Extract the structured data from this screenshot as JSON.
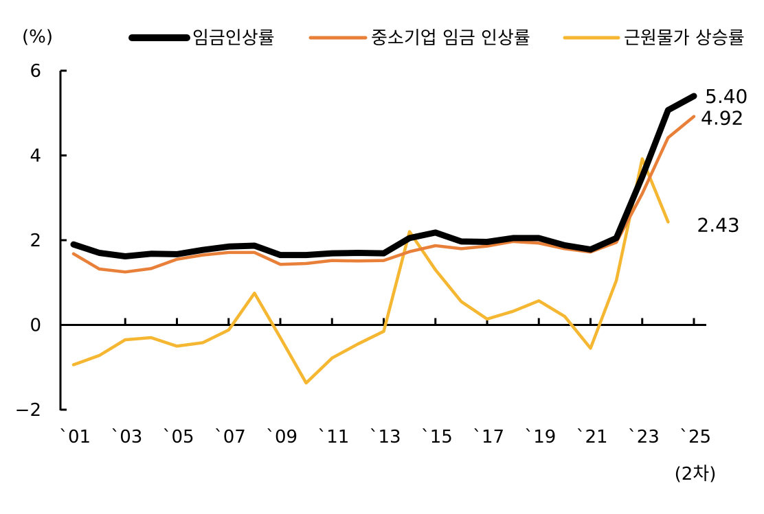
{
  "chart_data": {
    "type": "line",
    "unit_label": "(%)",
    "x": [
      "2001",
      "2002",
      "2003",
      "2004",
      "2005",
      "2006",
      "2007",
      "2008",
      "2009",
      "2010",
      "2011",
      "2012",
      "2013",
      "2014",
      "2015",
      "2016",
      "2017",
      "2018",
      "2019",
      "2020",
      "2021",
      "2022",
      "2023",
      "2024",
      "2025"
    ],
    "x_tick_labels": [
      {
        "x": "2001",
        "label": "`01"
      },
      {
        "x": "2003",
        "label": "`03"
      },
      {
        "x": "2005",
        "label": "`05"
      },
      {
        "x": "2007",
        "label": "`07"
      },
      {
        "x": "2009",
        "label": "`09"
      },
      {
        "x": "2011",
        "label": "`11"
      },
      {
        "x": "2013",
        "label": "`13"
      },
      {
        "x": "2015",
        "label": "`15"
      },
      {
        "x": "2017",
        "label": "`17"
      },
      {
        "x": "2019",
        "label": "`19"
      },
      {
        "x": "2021",
        "label": "`21"
      },
      {
        "x": "2023",
        "label": "`23"
      },
      {
        "x": "2025",
        "label": "`25",
        "sublabel": "(2차)"
      }
    ],
    "y_ticks": [
      "6",
      "4",
      "2",
      "0",
      "−2"
    ],
    "ylim": [
      -2,
      6
    ],
    "series": [
      {
        "name": "임금인상률",
        "color": "#000000",
        "style": "thick",
        "values": [
          1.9,
          1.7,
          1.62,
          1.68,
          1.67,
          1.77,
          1.85,
          1.87,
          1.65,
          1.65,
          1.69,
          1.7,
          1.69,
          2.05,
          2.18,
          1.97,
          1.96,
          2.05,
          2.05,
          1.88,
          1.78,
          2.05,
          3.5,
          5.07,
          5.4
        ],
        "end_label": "5.40"
      },
      {
        "name": "중소기업 임금 인상률",
        "color": "#E8803A",
        "style": "medium",
        "values": [
          1.68,
          1.32,
          1.25,
          1.33,
          1.55,
          1.65,
          1.71,
          1.71,
          1.43,
          1.45,
          1.52,
          1.51,
          1.52,
          1.73,
          1.87,
          1.8,
          1.86,
          1.97,
          1.93,
          1.8,
          1.72,
          1.95,
          3.1,
          4.42,
          4.92
        ],
        "end_label": "4.92"
      },
      {
        "name": "근원물가 상승률",
        "color": "#F5B731",
        "style": "medium",
        "values": [
          -0.94,
          -0.72,
          -0.35,
          -0.3,
          -0.5,
          -0.42,
          -0.12,
          0.75,
          -0.3,
          -1.37,
          -0.78,
          -0.45,
          -0.15,
          2.2,
          1.3,
          0.55,
          0.14,
          0.32,
          0.57,
          0.2,
          -0.55,
          1.05,
          3.92,
          2.43,
          null
        ],
        "end_label": "2.43"
      }
    ],
    "legend_position": "top-right",
    "grid": false
  }
}
